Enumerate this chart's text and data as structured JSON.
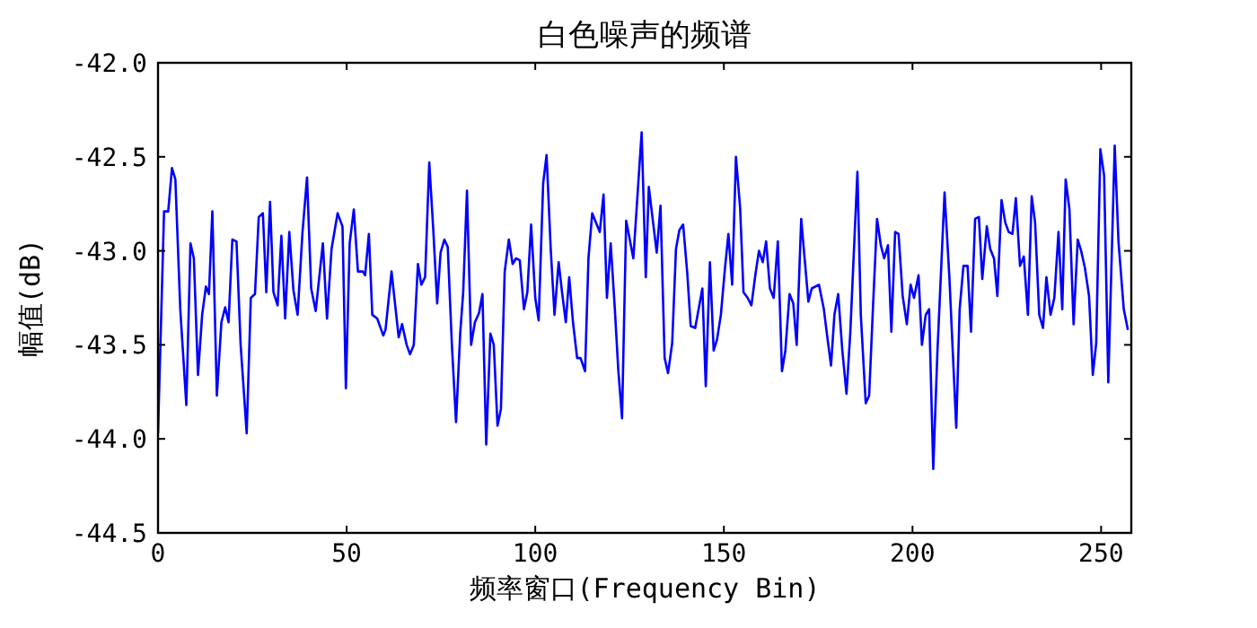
{
  "chart_data": {
    "type": "line",
    "title": "白色噪声的频谱",
    "xlabel": "频率窗口(Frequency Bin)",
    "ylabel": "幅值(dB)",
    "color": "#0000ff",
    "xlim": [
      0,
      258
    ],
    "ylim": [
      -44.5,
      -42.0
    ],
    "xticks": [
      0,
      50,
      100,
      150,
      200,
      250
    ],
    "yticks": [
      {
        "value": -44.5,
        "label": "-44.5"
      },
      {
        "value": -44.0,
        "label": "-44.0"
      },
      {
        "value": -43.5,
        "label": "-43.5"
      },
      {
        "value": -43.0,
        "label": "-43.0"
      },
      {
        "value": -42.5,
        "label": "-42.5"
      },
      {
        "value": -42.0,
        "label": "-42.0"
      }
    ],
    "x": [
      0,
      1.6,
      2.7,
      3.7,
      4.6,
      5.9,
      7.5,
      8.6,
      9.5,
      10.6,
      11.7,
      12.7,
      13.5,
      14.4,
      15.6,
      16.8,
      17.8,
      18.7,
      19.7,
      20.8,
      21.9,
      23.5,
      24.6,
      25.7,
      26.7,
      27.8,
      28.7,
      29.7,
      30.6,
      31.7,
      32.7,
      33.7,
      34.8,
      35.9,
      37.0,
      38.3,
      39.5,
      40.6,
      41.8,
      43.7,
      44.8,
      46.0,
      47.6,
      48.9,
      49.8,
      50.8,
      51.9,
      53.0,
      54.3,
      54.9,
      55.9,
      56.8,
      58.1,
      59.7,
      60.3,
      61.9,
      63.8,
      64.7,
      65.9,
      66.8,
      67.8,
      68.9,
      69.8,
      70.8,
      71.9,
      73.0,
      74.0,
      74.9,
      75.9,
      76.8,
      77.9,
      79.0,
      80.1,
      80.9,
      81.9,
      83.0,
      84.0,
      85.1,
      86.0,
      87.0,
      88.1,
      89.0,
      90.0,
      90.9,
      91.9,
      93.0,
      94.0,
      94.9,
      95.9,
      97.0,
      97.9,
      98.9,
      100.0,
      100.9,
      102.1,
      103.0,
      104.1,
      105.1,
      106.2,
      107.1,
      108.1,
      109.0,
      110.0,
      111.1,
      112.0,
      113.2,
      114.1,
      115.1,
      117.1,
      118.1,
      119.0,
      120.0,
      121.1,
      122.0,
      123.0,
      124.1,
      126.0,
      128.2,
      129.3,
      130.1,
      132.2,
      133.2,
      134.3,
      135.2,
      136.3,
      137.3,
      138.2,
      139.2,
      140.3,
      141.2,
      142.4,
      144.3,
      145.2,
      146.3,
      147.3,
      148.2,
      149.2,
      150.3,
      151.2,
      152.2,
      153.2,
      154.3,
      155.2,
      156.3,
      157.3,
      158.4,
      159.3,
      160.3,
      161.2,
      162.2,
      163.2,
      164.3,
      165.4,
      166.3,
      167.4,
      168.4,
      169.3,
      170.5,
      171.4,
      172.4,
      173.3,
      175.2,
      176.5,
      177.3,
      178.4,
      179.3,
      180.3,
      181.4,
      182.5,
      183.5,
      185.4,
      186.3,
      187.6,
      188.5,
      189.5,
      190.6,
      191.6,
      192.5,
      193.5,
      194.4,
      195.4,
      196.3,
      197.4,
      198.5,
      199.5,
      200.4,
      201.6,
      202.5,
      203.5,
      204.4,
      205.5,
      206.6,
      208.5,
      209.8,
      211.6,
      212.5,
      213.5,
      214.6,
      215.5,
      216.6,
      217.6,
      218.5,
      219.7,
      220.6,
      221.6,
      222.5,
      223.6,
      224.6,
      225.5,
      226.5,
      227.4,
      228.5,
      229.5,
      230.6,
      231.6,
      232.5,
      233.6,
      234.6,
      235.5,
      236.6,
      237.6,
      238.7,
      239.7,
      240.6,
      241.6,
      242.7,
      243.8,
      244.7,
      245.7,
      246.8,
      247.8,
      248.7,
      249.8,
      250.8,
      251.9,
      253.6,
      254.6,
      256.0,
      257.1
    ],
    "values": [
      -43.97,
      -42.79,
      -42.79,
      -42.56,
      -42.62,
      -43.31,
      -43.82,
      -42.96,
      -43.04,
      -43.66,
      -43.34,
      -43.19,
      -43.23,
      -42.79,
      -43.77,
      -43.38,
      -43.3,
      -43.38,
      -42.94,
      -42.95,
      -43.5,
      -43.97,
      -43.25,
      -43.23,
      -42.82,
      -42.8,
      -43.22,
      -42.74,
      -43.22,
      -43.29,
      -42.92,
      -43.36,
      -42.9,
      -43.21,
      -43.34,
      -42.9,
      -42.61,
      -43.2,
      -43.32,
      -42.96,
      -43.36,
      -42.99,
      -42.8,
      -42.87,
      -43.73,
      -42.96,
      -42.78,
      -43.11,
      -43.11,
      -43.13,
      -42.91,
      -43.34,
      -43.36,
      -43.45,
      -43.42,
      -43.11,
      -43.46,
      -43.39,
      -43.5,
      -43.55,
      -43.5,
      -43.07,
      -43.18,
      -43.14,
      -42.53,
      -42.9,
      -43.28,
      -43.01,
      -42.94,
      -42.98,
      -43.5,
      -43.91,
      -43.44,
      -43.22,
      -42.68,
      -43.5,
      -43.38,
      -43.33,
      -43.23,
      -44.03,
      -43.44,
      -43.5,
      -43.93,
      -43.84,
      -43.11,
      -42.94,
      -43.07,
      -43.04,
      -43.05,
      -43.31,
      -43.22,
      -42.86,
      -43.25,
      -43.37,
      -42.64,
      -42.49,
      -42.99,
      -43.34,
      -43.06,
      -43.22,
      -43.38,
      -43.14,
      -43.38,
      -43.57,
      -43.57,
      -43.64,
      -43.04,
      -42.8,
      -42.9,
      -42.7,
      -43.25,
      -42.96,
      -43.31,
      -43.63,
      -43.89,
      -42.84,
      -43.04,
      -42.37,
      -43.14,
      -42.66,
      -43.01,
      -42.76,
      -43.57,
      -43.65,
      -43.49,
      -42.99,
      -42.89,
      -42.86,
      -43.12,
      -43.4,
      -43.41,
      -43.2,
      -43.72,
      -43.06,
      -43.53,
      -43.47,
      -43.34,
      -43.09,
      -42.91,
      -43.18,
      -42.5,
      -42.77,
      -43.22,
      -43.25,
      -43.29,
      -43.12,
      -43.0,
      -43.06,
      -42.95,
      -43.2,
      -43.25,
      -42.95,
      -43.64,
      -43.53,
      -43.23,
      -43.28,
      -43.5,
      -42.83,
      -43.04,
      -43.27,
      -43.2,
      -43.18,
      -43.31,
      -43.44,
      -43.61,
      -43.34,
      -43.23,
      -43.53,
      -43.76,
      -43.44,
      -42.58,
      -43.34,
      -43.81,
      -43.77,
      -43.31,
      -42.83,
      -42.97,
      -43.04,
      -42.97,
      -43.43,
      -42.9,
      -42.91,
      -43.24,
      -43.39,
      -43.18,
      -43.25,
      -43.13,
      -43.5,
      -43.34,
      -43.31,
      -44.16,
      -43.54,
      -42.69,
      -43.15,
      -43.94,
      -43.31,
      -43.08,
      -43.08,
      -43.43,
      -42.83,
      -42.82,
      -43.15,
      -42.87,
      -42.99,
      -43.04,
      -43.24,
      -42.73,
      -42.85,
      -42.9,
      -42.91,
      -42.72,
      -43.08,
      -43.03,
      -43.34,
      -42.71,
      -42.85,
      -43.34,
      -43.41,
      -43.14,
      -43.34,
      -43.25,
      -42.9,
      -43.31,
      -42.62,
      -42.78,
      -43.39,
      -42.94,
      -43.0,
      -43.09,
      -43.24,
      -43.66,
      -43.49,
      -42.46,
      -42.6,
      -43.7,
      -42.44,
      -42.95,
      -43.31,
      -43.42
    ]
  }
}
